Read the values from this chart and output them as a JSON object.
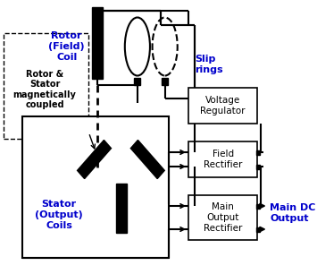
{
  "bg_color": "#ffffff",
  "line_color": "#000000",
  "text_color_blue": "#0000cc",
  "text_color_black": "#000000",
  "fig_width": 3.55,
  "fig_height": 3.06,
  "rotor_coil_label": "Rotor\n(Field)\nCoil",
  "slip_rings_label": "Slip\nrings",
  "rotor_stator_label": "Rotor &\nStator\nmagnetically\ncoupled",
  "stator_label": "Stator\n(Output)\nCoils",
  "voltage_reg_label": "Voltage\nRegulator",
  "field_rect_label": "Field\nRectifier",
  "main_rect_label": "Main\nOutput\nRectifier",
  "main_dc_label": "Main DC\nOutput"
}
